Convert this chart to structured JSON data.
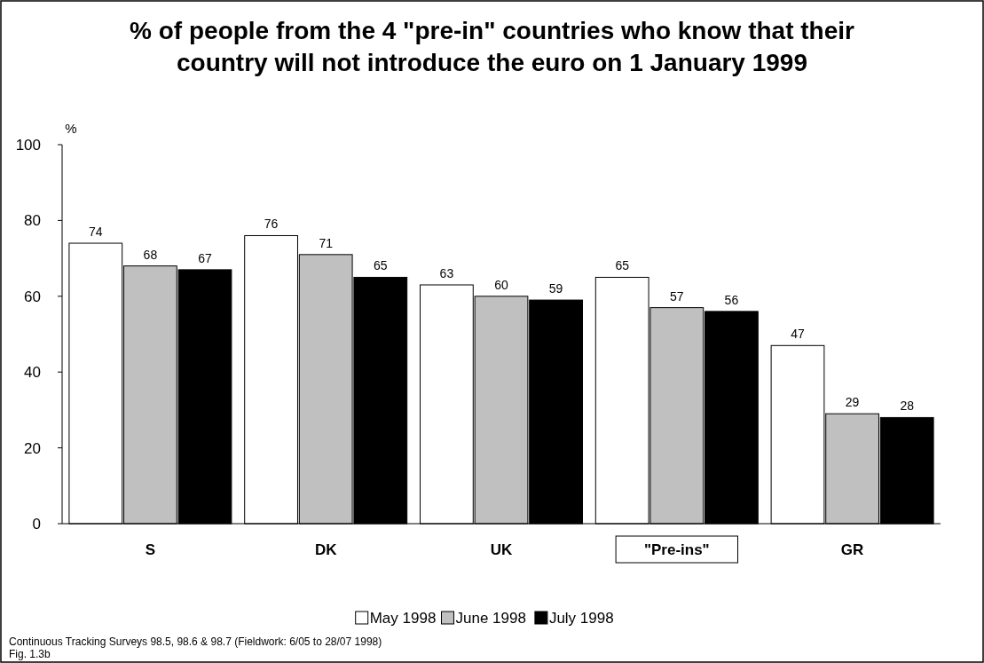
{
  "chart_data": {
    "type": "bar",
    "title": "% of people from the 4 \"pre-in\" countries who know that their country will not introduce the euro on 1 January 1999",
    "ylabel": "%",
    "categories": [
      "S",
      "DK",
      "UK",
      "\"Pre-ins\"",
      "GR"
    ],
    "series": [
      {
        "name": "May 1998",
        "color": "#ffffff",
        "values": [
          74,
          76,
          63,
          65,
          47
        ]
      },
      {
        "name": "June 1998",
        "color": "#c0c0c0",
        "values": [
          68,
          71,
          60,
          57,
          29
        ]
      },
      {
        "name": "July 1998",
        "color": "#000000",
        "values": [
          67,
          65,
          59,
          56,
          28
        ]
      }
    ],
    "ylim": [
      0,
      100
    ],
    "yticks": [
      0,
      20,
      40,
      60,
      80,
      100
    ],
    "grid": false,
    "legend": "bottom",
    "data_labels": true,
    "annotations": [
      "Continuous Tracking Surveys 98.5, 98.6 & 98.7 (Fieldwork: 6/05 to 28/07 1998)",
      "Fig. 1.3b"
    ]
  }
}
